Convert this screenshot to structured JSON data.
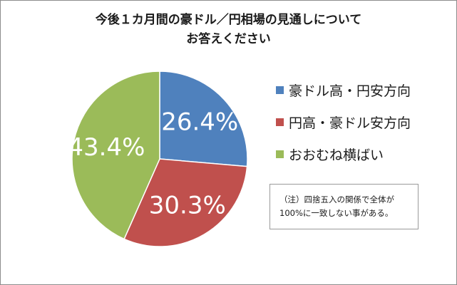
{
  "chart_data": {
    "type": "pie",
    "title_lines": [
      "今後１カ月間の豪ドル／円相場の見通しについて",
      "お答えください"
    ],
    "slices": [
      {
        "label": "豪ドル高・円安方向",
        "value": 26.4,
        "value_label": "26.4%",
        "color": "#4f81bd"
      },
      {
        "label": "円高・豪ドル安方向",
        "value": 30.3,
        "value_label": "30.3%",
        "color": "#c0504d"
      },
      {
        "label": "おおむね横ばい",
        "value": 43.4,
        "value_label": "43.4%",
        "color": "#9bbb59"
      }
    ],
    "start_angle": "12 o'clock, clockwise",
    "legend_position": "right"
  },
  "note": {
    "lines": [
      "（注）四捨五入の関係で全体が",
      "100%に一致しない事がある。"
    ]
  }
}
